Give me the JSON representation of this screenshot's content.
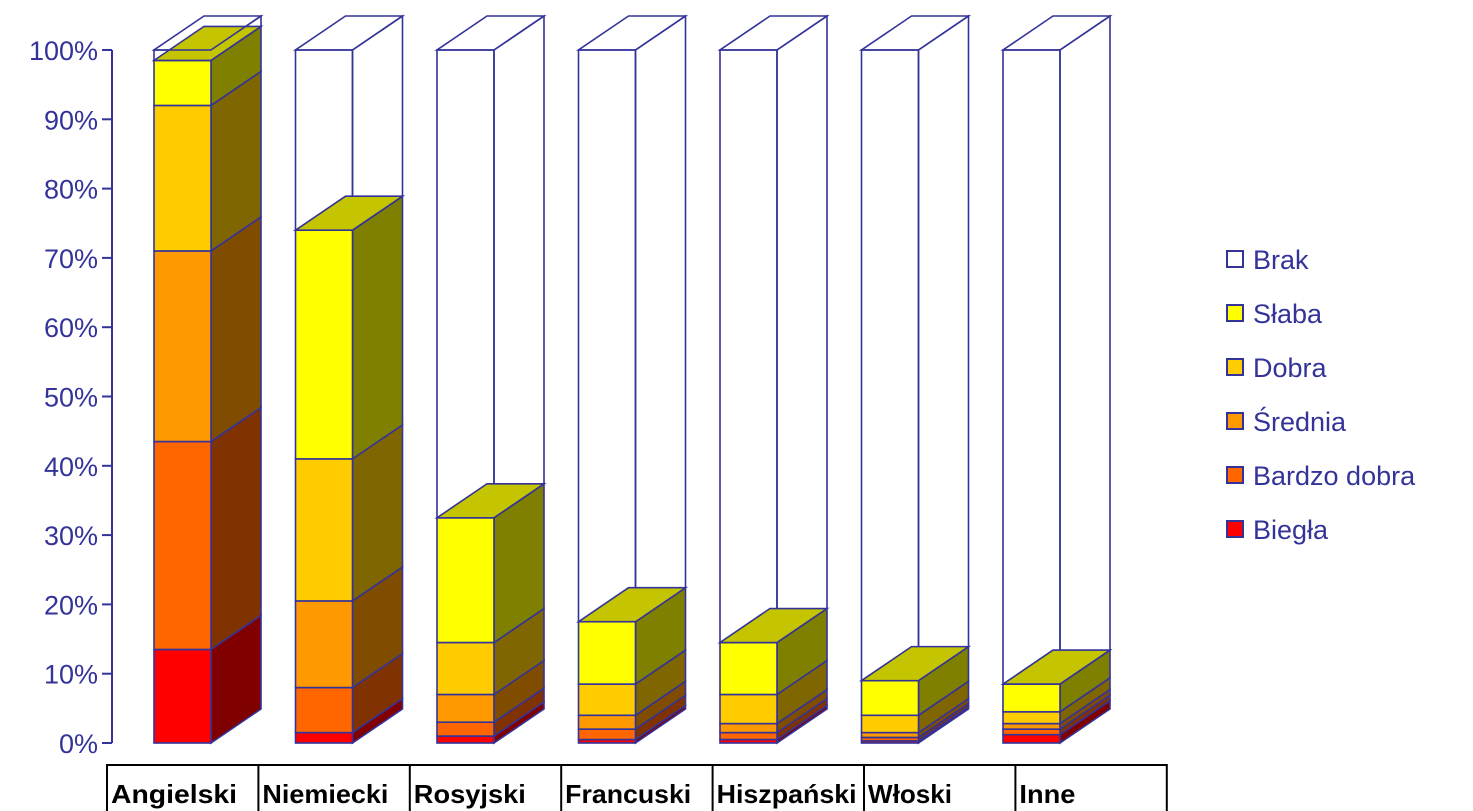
{
  "chart_data": {
    "type": "bar",
    "stacked": true,
    "three_d": true,
    "categories": [
      "Angielski",
      "Niemiecki",
      "Rosyjski",
      "Francuski",
      "Hiszpański",
      "Włoski",
      "Inne"
    ],
    "series": [
      {
        "name": "Biegła",
        "color": "#ff0000",
        "values": [
          13.5,
          1.5,
          1.0,
          0.5,
          0.5,
          0.3,
          1.2
        ]
      },
      {
        "name": "Bardzo dobra",
        "color": "#ff6600",
        "values": [
          30.0,
          6.5,
          2.0,
          1.5,
          1.0,
          0.5,
          0.8
        ]
      },
      {
        "name": "Średnia",
        "color": "#ff9900",
        "values": [
          27.5,
          12.5,
          4.0,
          2.0,
          1.3,
          0.7,
          0.8
        ]
      },
      {
        "name": "Dobra",
        "color": "#ffcc00",
        "values": [
          21.0,
          20.5,
          7.5,
          4.5,
          4.2,
          2.5,
          1.7
        ]
      },
      {
        "name": "Słaba",
        "color": "#ffff00",
        "values": [
          6.5,
          33.0,
          18.0,
          9.0,
          7.5,
          5.0,
          4.0
        ]
      },
      {
        "name": "Brak",
        "color": "#ffffff",
        "values": [
          1.5,
          26.0,
          67.5,
          82.5,
          85.5,
          91.0,
          91.5
        ]
      }
    ],
    "legend_order": [
      "Brak",
      "Słaba",
      "Dobra",
      "Średnia",
      "Bardzo dobra",
      "Biegła"
    ],
    "yticks": [
      "0%",
      "10%",
      "20%",
      "30%",
      "40%",
      "50%",
      "60%",
      "70%",
      "80%",
      "90%",
      "100%"
    ],
    "ylim": [
      0,
      100
    ],
    "legend_position": "right",
    "grid": false,
    "outline_color": "#333399",
    "title": "",
    "xlabel": "",
    "ylabel": ""
  }
}
